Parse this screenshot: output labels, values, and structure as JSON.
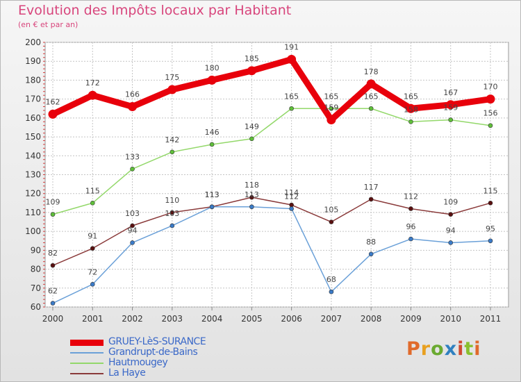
{
  "title": "Evolution des Impôts locaux par Habitant",
  "subtitle": "(en € et par an)",
  "logo": [
    "P",
    "r",
    "o",
    "x",
    "i",
    "t",
    "i"
  ],
  "logo_colors": [
    "#e06a2b",
    "#e8a020",
    "#6aaa30",
    "#2f80c0",
    "#d04a30",
    "#8abf2f",
    "#e06a2b"
  ],
  "chart_data": {
    "type": "line",
    "x": [
      2000,
      2001,
      2002,
      2003,
      2004,
      2005,
      2006,
      2007,
      2008,
      2009,
      2010,
      2011
    ],
    "ylim": [
      60,
      200
    ],
    "yticks": [
      60,
      70,
      80,
      90,
      100,
      110,
      120,
      130,
      140,
      150,
      160,
      170,
      180,
      190,
      200
    ],
    "grid": true,
    "legend_position": "bottom-left",
    "series": [
      {
        "name": "GRUEY-LèS-SURANCE",
        "values": [
          162,
          172,
          166,
          175,
          180,
          185,
          191,
          159,
          178,
          165,
          167,
          170
        ],
        "color": "#e8000b"
      },
      {
        "name": "Grandrupt-de-Bains",
        "values": [
          62,
          72,
          94,
          103,
          113,
          113,
          112,
          68,
          88,
          96,
          94,
          95
        ],
        "color": "#5b9bd5"
      },
      {
        "name": "Hautmougey",
        "values": [
          109,
          115,
          133,
          142,
          146,
          149,
          165,
          165,
          165,
          158,
          159,
          156
        ],
        "color": "#8fd463"
      },
      {
        "name": "La Haye",
        "values": [
          82,
          91,
          103,
          110,
          113,
          118,
          114,
          105,
          117,
          112,
          109,
          115
        ],
        "color": "#6b1a1a"
      }
    ]
  }
}
